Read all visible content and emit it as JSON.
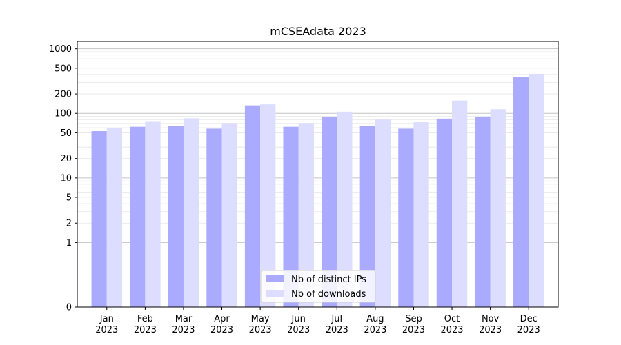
{
  "chart_data": {
    "type": "bar",
    "title": "mCSEAdata 2023",
    "xlabel": "",
    "ylabel": "",
    "yscale": "symlog",
    "ylim": [
      0,
      1300
    ],
    "yticks": [
      0,
      1,
      2,
      5,
      10,
      20,
      50,
      100,
      200,
      500,
      1000
    ],
    "major_gridlines": [
      1,
      10,
      100,
      1000
    ],
    "minor_gridlines": true,
    "legend_position": "lower-center",
    "categories": [
      {
        "month": "Jan",
        "year": "2023"
      },
      {
        "month": "Feb",
        "year": "2023"
      },
      {
        "month": "Mar",
        "year": "2023"
      },
      {
        "month": "Apr",
        "year": "2023"
      },
      {
        "month": "May",
        "year": "2023"
      },
      {
        "month": "Jun",
        "year": "2023"
      },
      {
        "month": "Jul",
        "year": "2023"
      },
      {
        "month": "Aug",
        "year": "2023"
      },
      {
        "month": "Sep",
        "year": "2023"
      },
      {
        "month": "Oct",
        "year": "2023"
      },
      {
        "month": "Nov",
        "year": "2023"
      },
      {
        "month": "Dec",
        "year": "2023"
      }
    ],
    "series": [
      {
        "name": "Nb of distinct IPs",
        "color": "#aaaaff",
        "values": [
          53,
          62,
          63,
          58,
          133,
          62,
          89,
          64,
          58,
          83,
          89,
          370
        ]
      },
      {
        "name": "Nb of downloads",
        "color": "#ddddff",
        "values": [
          60,
          74,
          84,
          71,
          138,
          71,
          106,
          80,
          73,
          158,
          116,
          410
        ]
      }
    ]
  }
}
